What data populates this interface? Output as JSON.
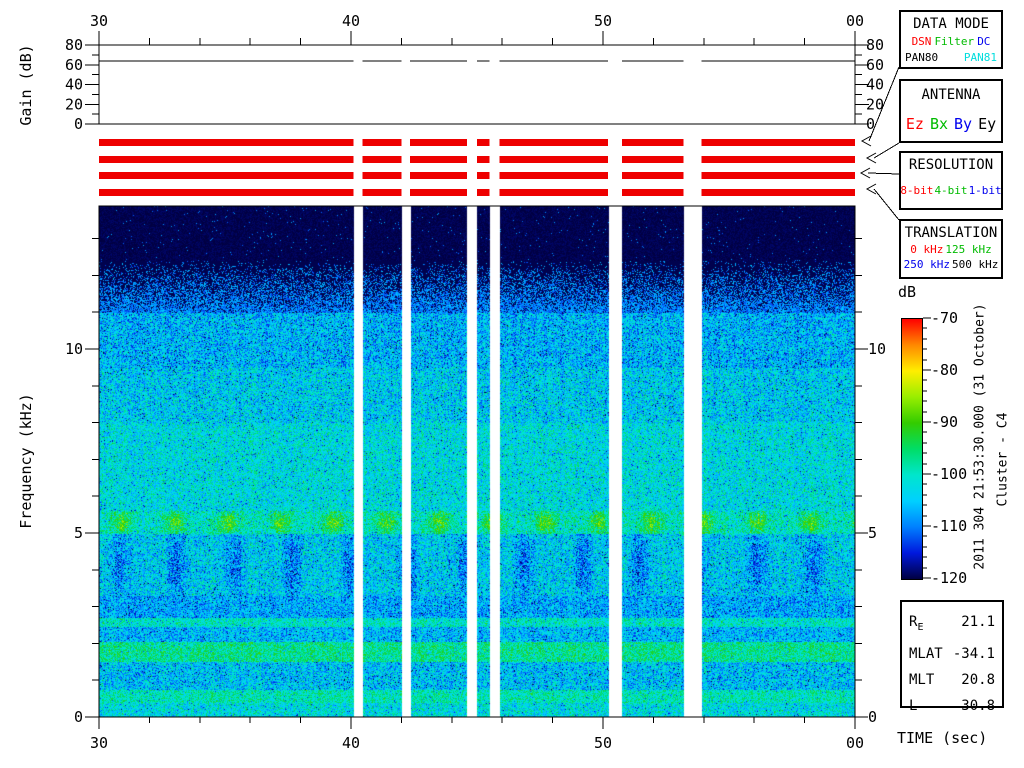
{
  "colors": {
    "background": "#ffffff",
    "axis": "#000000",
    "bar_red": "#ee0000",
    "text_red": "#ff0000",
    "text_green": "#00bb00",
    "text_blue": "#0000ee",
    "text_cyan": "#00dddd",
    "text_black": "#000000"
  },
  "annotations": {
    "datetime": "2011 304 21:53:30.000 (31 October)",
    "spacecraft": "Cluster - C4",
    "colorbar_unit": "dB"
  },
  "panels": {
    "data_mode": {
      "title": "DATA MODE",
      "rows": [
        [
          {
            "text": "DSN",
            "color": "#ff0000"
          },
          {
            "text": "Filter",
            "color": "#00bb00"
          },
          {
            "text": "DC",
            "color": "#0000ee"
          }
        ],
        [
          {
            "text": "PAN80",
            "color": "#000000"
          },
          {
            "text": "PAN81",
            "color": "#00dddd"
          }
        ]
      ]
    },
    "antenna": {
      "title": "ANTENNA",
      "rows": [
        [
          {
            "text": "Ez",
            "color": "#ff0000"
          },
          {
            "text": "Bx",
            "color": "#00bb00"
          },
          {
            "text": "By",
            "color": "#0000ee"
          },
          {
            "text": "Ey",
            "color": "#000000"
          }
        ]
      ]
    },
    "resolution": {
      "title": "RESOLUTION",
      "rows": [
        [
          {
            "text": "8-bit",
            "color": "#ff0000"
          },
          {
            "text": "4-bit",
            "color": "#00bb00"
          },
          {
            "text": "1-bit",
            "color": "#0000ee"
          }
        ]
      ]
    },
    "translation": {
      "title": "TRANSLATION",
      "rows": [
        [
          {
            "text": "0 kHz",
            "color": "#ff0000"
          },
          {
            "text": "125 kHz",
            "color": "#00bb00"
          }
        ],
        [
          {
            "text": "250 kHz",
            "color": "#0000ee"
          },
          {
            "text": "500 kHz",
            "color": "#000000"
          }
        ]
      ]
    }
  },
  "ephemeris": {
    "rows": [
      {
        "label": "R",
        "sub": "E",
        "value": "21.1"
      },
      {
        "label": "MLAT",
        "sub": "",
        "value": "-34.1"
      },
      {
        "label": "MLT",
        "sub": "",
        "value": "20.8"
      },
      {
        "label": "L",
        "sub": "",
        "value": "30.8"
      }
    ]
  },
  "chart_data": {
    "type": "heatmap",
    "time_axis": {
      "label": "TIME (sec)",
      "tick_labels": [
        "30",
        "40",
        "50",
        "00"
      ],
      "tick_seconds": [
        30,
        40,
        50,
        60
      ],
      "minor_tick_step_sec": 2,
      "start": "21:53:30.000",
      "end": "21:54:00.000"
    },
    "freq_axis": {
      "label": "Frequency (kHz)",
      "tick_labels": [
        "0",
        "5",
        "10"
      ],
      "tick_khz": [
        0,
        5,
        10
      ],
      "minor_tick_step_khz": 1,
      "range_khz": [
        0,
        13.9
      ]
    },
    "intensity_axis": {
      "label": "dB",
      "tick_labels": [
        "-70",
        "-80",
        "-90",
        "-100",
        "-110",
        "-120"
      ],
      "tick_db": [
        -70,
        -80,
        -90,
        -100,
        -110,
        -120
      ],
      "minor_tick_step_db": 2,
      "range_db": [
        -70,
        -120
      ],
      "gradient": [
        "#ff0000",
        "#ff8800",
        "#ffee00",
        "#99ee00",
        "#33cc00",
        "#00dd66",
        "#00e6cc",
        "#00d0ff",
        "#0080ff",
        "#0018dd",
        "#000042"
      ]
    },
    "gain_plot": {
      "ylabel": "Gain (dB)",
      "tick_labels": [
        "0",
        "20",
        "40",
        "60",
        "80"
      ],
      "tick_db": [
        0,
        20,
        40,
        60,
        80
      ],
      "minor_tick_step_db": 10,
      "range_db": [
        0,
        80
      ],
      "gain_value_db": 64
    },
    "availability_bars": {
      "rows": 4,
      "color": "#ee0000"
    },
    "data_segments_sec": [
      [
        30.0,
        40.1
      ],
      [
        40.45,
        42.0
      ],
      [
        42.35,
        44.6
      ],
      [
        45.0,
        45.5
      ],
      [
        45.9,
        50.2
      ],
      [
        50.75,
        53.2
      ],
      [
        53.9,
        60.0
      ]
    ],
    "spectrogram_bands": [
      {
        "f_khz": [
          12.4,
          14.0
        ],
        "mean_db": -120,
        "noise_db": 2,
        "feature": "floor"
      },
      {
        "f_khz": [
          11.0,
          12.4
        ],
        "mean_db": -117,
        "noise_db": 5,
        "feature": "fade"
      },
      {
        "f_khz": [
          9.5,
          11.0
        ],
        "mean_db": -106,
        "noise_db": 8
      },
      {
        "f_khz": [
          8.0,
          9.5
        ],
        "mean_db": -104,
        "noise_db": 8
      },
      {
        "f_khz": [
          5.6,
          8.0
        ],
        "mean_db": -102,
        "noise_db": 7
      },
      {
        "f_khz": [
          5.0,
          5.6
        ],
        "mean_db": -100,
        "noise_db": 7,
        "feature": "blobs"
      },
      {
        "f_khz": [
          3.3,
          5.0
        ],
        "mean_db": -104,
        "noise_db": 8,
        "feature": "funnels"
      },
      {
        "f_khz": [
          2.7,
          3.3
        ],
        "mean_db": -107,
        "noise_db": 7
      },
      {
        "f_khz": [
          2.45,
          2.7
        ],
        "mean_db": -100,
        "noise_db": 6
      },
      {
        "f_khz": [
          2.05,
          2.45
        ],
        "mean_db": -106,
        "noise_db": 7
      },
      {
        "f_khz": [
          1.5,
          2.05
        ],
        "mean_db": -97,
        "noise_db": 6
      },
      {
        "f_khz": [
          0.75,
          1.5
        ],
        "mean_db": -105,
        "noise_db": 8
      },
      {
        "f_khz": [
          0.4,
          0.75
        ],
        "mean_db": -99,
        "noise_db": 6
      },
      {
        "f_khz": [
          0.0,
          0.4
        ],
        "mean_db": -102,
        "noise_db": 7
      }
    ]
  }
}
